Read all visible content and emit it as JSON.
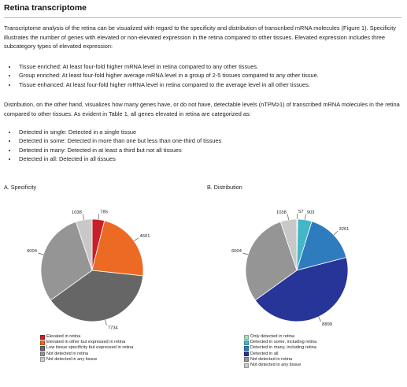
{
  "title": "Retina transcriptome",
  "intro": {
    "paragraph1": "Transcriptome analysis of the retina can be visualized with regard to the specificity and distribution of transcribed mRNA molecules (Figure 1). Specificity illustrates the number of genes with elevated or non-elevated expression in the retina compared to other tissues. Elevated expression includes three subcategory types of elevated expression:",
    "specificity_bullets": [
      "Tissue enriched: At least four-fold higher mRNA level in retina compared to any other tissues.",
      "Group enriched: At least four-fold higher average mRNA level in a group of 2-5 tissues compared to any other tissue.",
      "Tissue enhanced: At least four-fold higher mRNA level in retina compared to the average level in all other tissues."
    ],
    "paragraph2": "Distribution, on the other hand, visualizes how many genes have, or do not have, detectable levels (nTPM≥1) of transcribed mRNA molecules in the retina compared to other tissues. As evident in Table 1, all genes elevated in retina are categorized as:",
    "distribution_bullets": [
      "Detected in single: Detected in a single tissue",
      "Detected in some: Detected in more than one but less than one-third of tissues",
      "Detected in many: Detected in at least a third but not all tissues",
      "Detected in all: Detected in all tissues"
    ]
  },
  "chart_data": [
    {
      "type": "pie",
      "title": "A. Specificity",
      "slices": [
        {
          "label": "Elevated in retina",
          "value": 785,
          "color": "#c8202a"
        },
        {
          "label": "Elevated in other but expressed in retina",
          "value": 4601,
          "color": "#ec6a24"
        },
        {
          "label": "Low tissue specificity but expressed in retina",
          "value": 7734,
          "color": "#666666"
        },
        {
          "label": "Not detected in retina",
          "value": 6004,
          "color": "#959595"
        },
        {
          "label": "Not detected in any tissue",
          "value": 1038,
          "color": "#c8c8c8"
        }
      ],
      "legend_placement": "bottom"
    },
    {
      "type": "pie",
      "title": "B. Distribution",
      "slices": [
        {
          "label": "Only detected in retina",
          "value": 57,
          "color": "#a8dcc0"
        },
        {
          "label": "Detected in some, including retina",
          "value": 903,
          "color": "#43b6c8"
        },
        {
          "label": "Detected in many, including retina",
          "value": 3261,
          "color": "#2e7bbd"
        },
        {
          "label": "Detected in all",
          "value": 8899,
          "color": "#263597"
        },
        {
          "label": "Not detected in retina",
          "value": 6004,
          "color": "#959595"
        },
        {
          "label": "Not detected in any tissue",
          "value": 1038,
          "color": "#c8c8c8"
        }
      ],
      "legend_placement": "bottom"
    }
  ]
}
